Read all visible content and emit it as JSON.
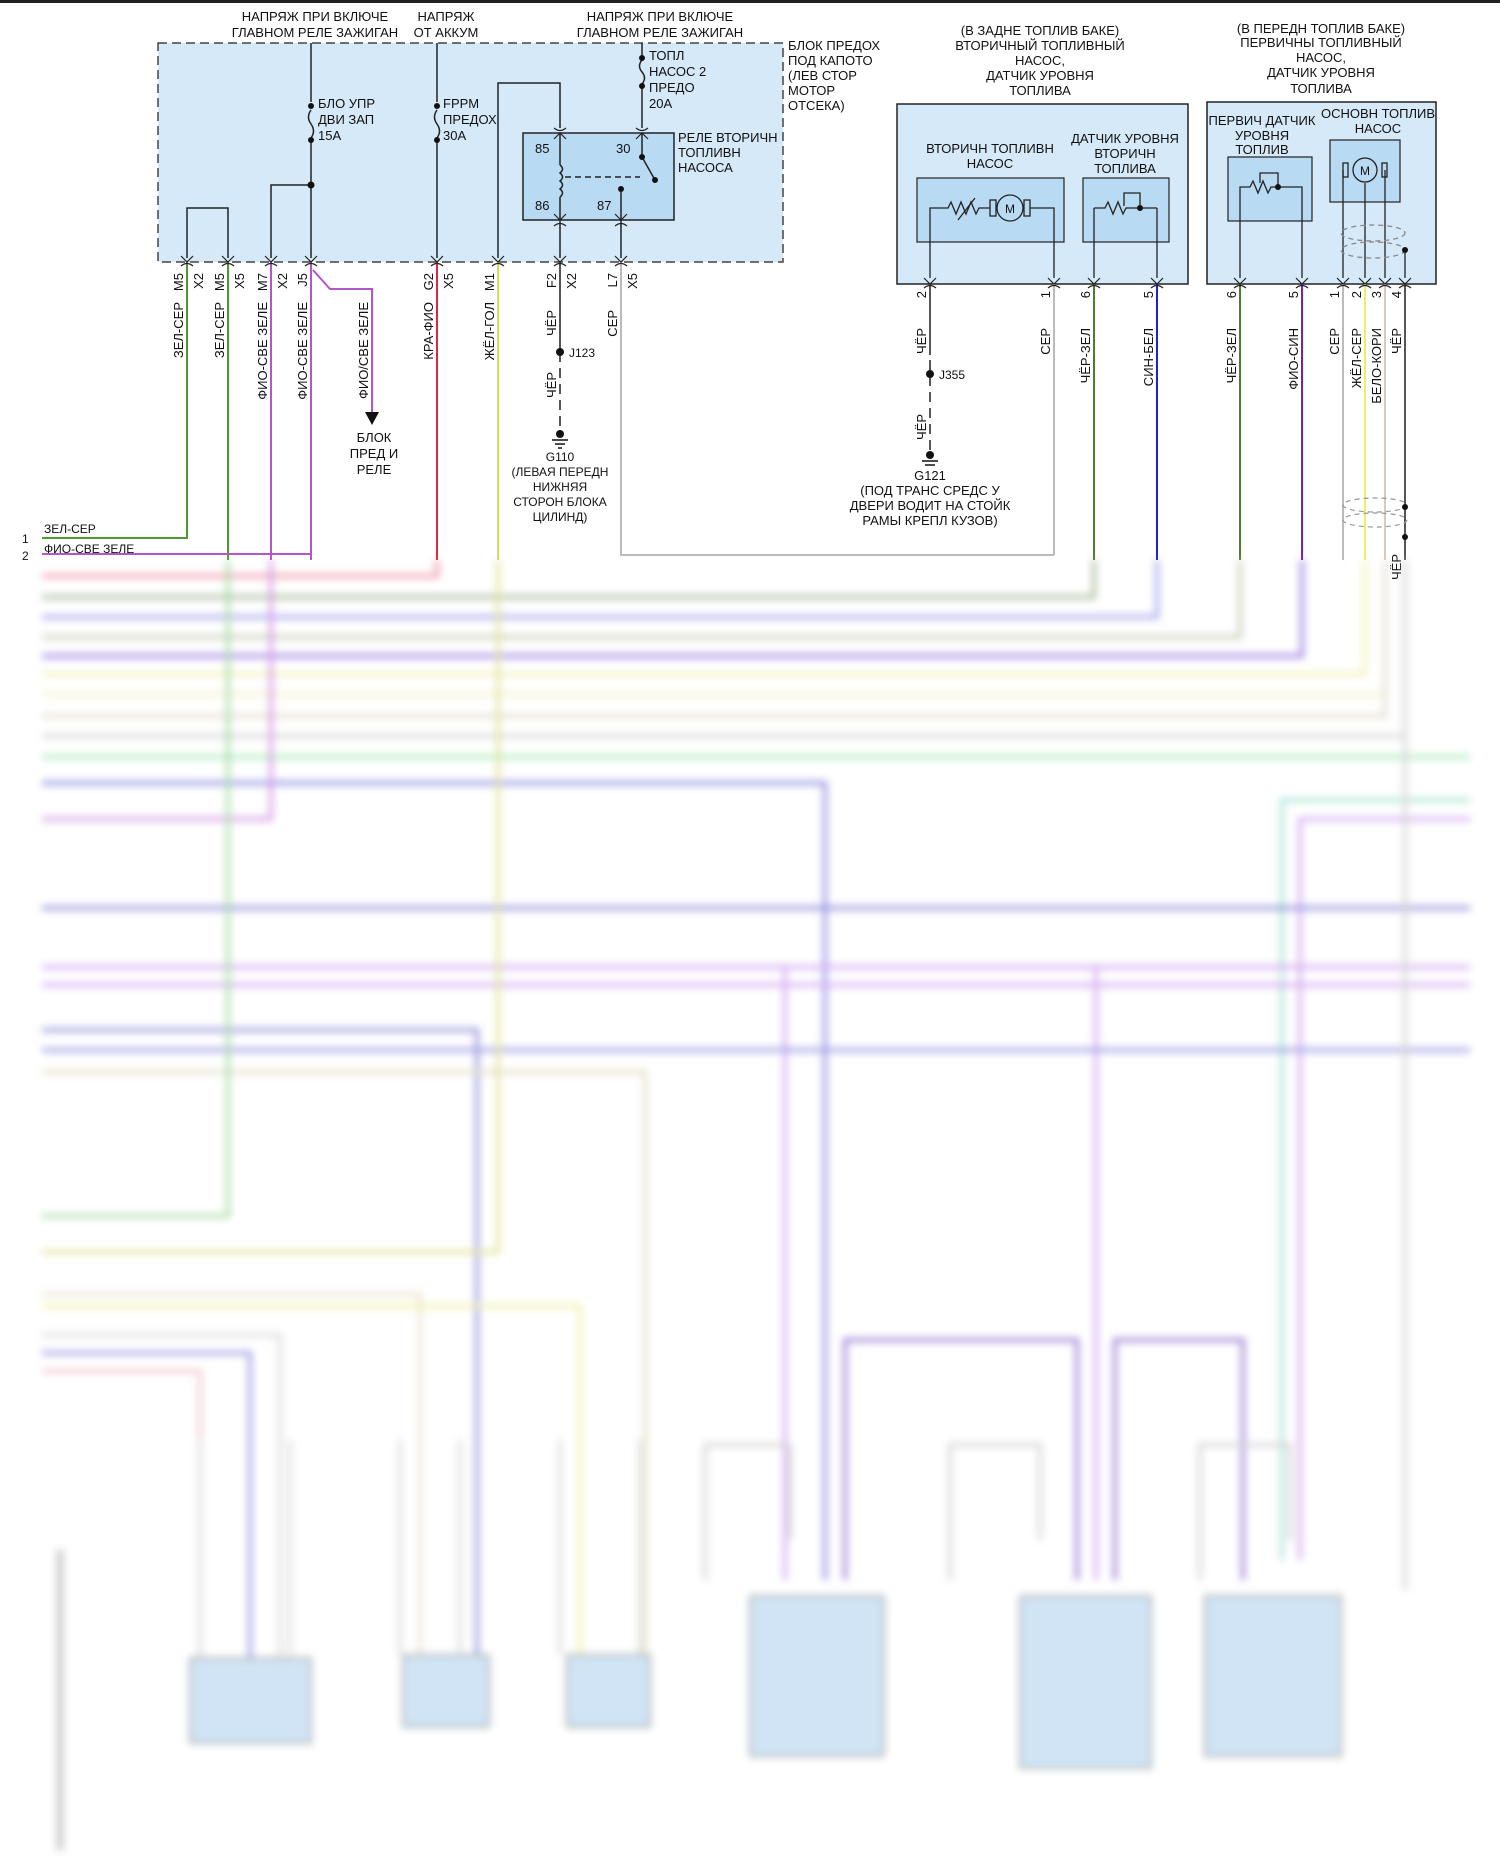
{
  "supply_labels": [
    {
      "line1": "НАПРЯЖ ПРИ ВКЛЮЧЕ",
      "line2": "ГЛАВНОМ РЕЛЕ ЗАЖИГАН"
    },
    {
      "line1": "НАПРЯЖ",
      "line2": "ОТ АККУМ"
    },
    {
      "line1": "НАПРЯЖ ПРИ ВКЛЮЧЕ",
      "line2": "ГЛАВНОМ РЕЛЕ ЗАЖИГАН"
    }
  ],
  "fuse_block": {
    "label": [
      "БЛОК ПРЕДОХ",
      "ПОД КАПОТО",
      "(ЛЕВ СТОР",
      "МОТОР",
      "ОТСЕКА)"
    ]
  },
  "fuses": [
    {
      "lines": [
        "БЛО УПР",
        "ДВИ ЗАП",
        "15A"
      ]
    },
    {
      "lines": [
        "FPPM",
        "ПРЕДОХ",
        "30A"
      ]
    },
    {
      "lines": [
        "ТОПЛ",
        "НАСОС 2",
        "ПРЕДО",
        "20A"
      ]
    }
  ],
  "relay": {
    "label": [
      "РЕЛЕ ВТОРИЧН",
      "ТОПЛИВН",
      "НАСОСА"
    ],
    "pins": [
      "85",
      "30",
      "86",
      "87"
    ]
  },
  "connectors": [
    {
      "pin": "M5",
      "conn": "X2",
      "wire": "ЗЕЛ-СЕР",
      "color": "#4f9a2e"
    },
    {
      "pin": "M5",
      "conn": "X5",
      "wire": "ЗЕЛ-СЕР",
      "color": "#4f9a2e"
    },
    {
      "pin": "M7",
      "conn": "X2",
      "wire": "ФИО-СВЕ ЗЕЛЕ",
      "color": "#b455c8"
    },
    {
      "pin": "J5",
      "conn": "",
      "wire": "ФИО-СВЕ ЗЕЛЕ",
      "color": "#b455c8"
    },
    {
      "pin": "G2",
      "conn": "X5",
      "wire": "КРА-ФИО",
      "color": "#e0244a"
    },
    {
      "pin": "M1",
      "conn": "",
      "wire": "ЖЁЛ-ГОЛ",
      "color": "#d8d860"
    },
    {
      "pin": "F2",
      "conn": "X2",
      "wire": "ЧЁР",
      "color": "#555555"
    },
    {
      "pin": "L7",
      "conn": "X5",
      "wire": "СЕР",
      "color": "#bbbbbb"
    }
  ],
  "branch": {
    "wire": "ФИО/СВЕ ЗЕЛЕ",
    "dest": [
      "БЛОК",
      "ПРЕД И",
      "РЕЛЕ"
    ]
  },
  "ground_110": {
    "splice": "J123",
    "wire_upper": "ЧЁР",
    "wire_lower": "ЧЁР",
    "name": "G110",
    "desc": [
      "(ЛЕВАЯ ПЕРЕДН",
      "НИЖНЯЯ",
      "СТОРОН БЛОКА",
      "ЦИЛИНД)"
    ]
  },
  "ground_121": {
    "splice": "J355",
    "wire_upper": "ЧЁР",
    "wire_lower": "ЧЁР",
    "name": "G121",
    "desc": [
      "(ПОД ТРАНС СРЕДС У",
      "ДВЕРИ ВОДИТ НА СТОЙК",
      "РАМЫ КРЕПЛ КУЗОВ)"
    ]
  },
  "rear_tank": {
    "title": [
      "(В ЗАДНЕ ТОПЛИВ БАКЕ)",
      "ВТОРИЧНЫЙ ТОПЛИВНЫЙ",
      "НАСОС,",
      "ДАТЧИК УРОВНЯ",
      "ТОПЛИВА"
    ],
    "pump_label": [
      "ВТОРИЧН ТОПЛИВН",
      "НАСОС"
    ],
    "sensor_label": [
      "ДАТЧИК УРОВНЯ",
      "ВТОРИЧН",
      "ТОПЛИВА"
    ],
    "motor_symbol": "M",
    "pins": [
      {
        "num": "2",
        "wire": "ЧЁР",
        "color": "#555555"
      },
      {
        "num": "1",
        "wire": "СЕР",
        "color": "#bbbbbb"
      },
      {
        "num": "6",
        "wire": "ЧЁР-ЗЕЛ",
        "color": "#4f7a3a"
      },
      {
        "num": "5",
        "wire": "СИН-БЕЛ",
        "color": "#2020d0"
      }
    ]
  },
  "front_tank": {
    "title": [
      "(В ПЕРЕДН ТОПЛИВ БАКЕ)",
      "ПЕРВИЧНЫ ТОПЛИВНЫЙ",
      "НАСОС,",
      "ДАТЧИК УРОВНЯ",
      "ТОПЛИВА"
    ],
    "sensor_label": [
      "ПЕРВИЧ ДАТЧИК",
      "УРОВНЯ",
      "ТОПЛИВ"
    ],
    "pump_label": [
      "ОСНОВН ТОПЛИВ",
      "НАСОС"
    ],
    "motor_symbol": "M",
    "pins": [
      {
        "num": "6",
        "wire": "ЧЁР-ЗЕЛ",
        "color": "#4f7a3a"
      },
      {
        "num": "5",
        "wire": "ФИО-СИН",
        "color": "#6a22d0"
      },
      {
        "num": "1",
        "wire": "СЕР",
        "color": "#bbbbbb"
      },
      {
        "num": "2",
        "wire": "ЖЁЛ-СЕР",
        "color": "#eeee60"
      },
      {
        "num": "3",
        "wire": "БЕЛО-КОРИ",
        "color": "#d8ccb8"
      },
      {
        "num": "4",
        "wire": "ЧЁР",
        "color": "#555555"
      }
    ],
    "shield_wire": "ЧЁР"
  },
  "bus": [
    {
      "num": "1",
      "label": "ЗЕЛ-СЕР"
    },
    {
      "num": "2",
      "label": "ФИО-СВЕ ЗЕЛЕ"
    }
  ],
  "colors": {
    "module_fill": "#d6e9f8",
    "inner_fill": "#b9daf3"
  }
}
